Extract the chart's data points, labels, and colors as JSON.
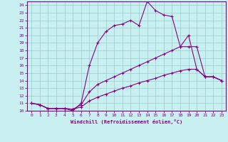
{
  "xlabel": "Windchill (Refroidissement éolien,°C)",
  "bg_color": "#c8f0f0",
  "line_color": "#880088",
  "grid_color": "#99cccc",
  "xlim": [
    -0.5,
    23.5
  ],
  "ylim": [
    10,
    24.5
  ],
  "yticks": [
    10,
    11,
    12,
    13,
    14,
    15,
    16,
    17,
    18,
    19,
    20,
    21,
    22,
    23,
    24
  ],
  "xticks": [
    0,
    1,
    2,
    3,
    4,
    5,
    6,
    7,
    8,
    9,
    10,
    11,
    12,
    13,
    14,
    15,
    16,
    17,
    18,
    19,
    20,
    21,
    22,
    23
  ],
  "line1_x": [
    0,
    1,
    2,
    3,
    4,
    5,
    6,
    7,
    8,
    9,
    10,
    11,
    12,
    13,
    14,
    15,
    16,
    17,
    18,
    19,
    20,
    21,
    22,
    23
  ],
  "line1_y": [
    11.0,
    10.8,
    10.3,
    10.3,
    10.3,
    10.0,
    11.0,
    16.0,
    19.0,
    20.5,
    21.3,
    21.5,
    22.0,
    21.3,
    24.5,
    23.3,
    22.7,
    22.5,
    18.5,
    20.0,
    15.5,
    14.5,
    14.5,
    14.0
  ],
  "line2_x": [
    0,
    1,
    2,
    3,
    4,
    5,
    6,
    7,
    8,
    9,
    10,
    11,
    12,
    13,
    14,
    15,
    16,
    17,
    18,
    19,
    20,
    21,
    22,
    23
  ],
  "line2_y": [
    11.0,
    10.8,
    10.3,
    10.3,
    10.3,
    10.2,
    10.5,
    11.3,
    11.8,
    12.2,
    12.6,
    13.0,
    13.3,
    13.7,
    14.0,
    14.3,
    14.7,
    15.0,
    15.3,
    15.5,
    15.5,
    14.5,
    14.5,
    14.0
  ],
  "line3_x": [
    0,
    1,
    2,
    3,
    4,
    5,
    6,
    7,
    8,
    9,
    10,
    11,
    12,
    13,
    14,
    15,
    16,
    17,
    18,
    19,
    20,
    21,
    22,
    23
  ],
  "line3_y": [
    11.0,
    10.8,
    10.3,
    10.3,
    10.3,
    10.2,
    10.8,
    12.5,
    13.5,
    14.0,
    14.5,
    15.0,
    15.5,
    16.0,
    16.5,
    17.0,
    17.5,
    18.0,
    18.5,
    18.5,
    18.5,
    14.5,
    14.5,
    14.0
  ]
}
